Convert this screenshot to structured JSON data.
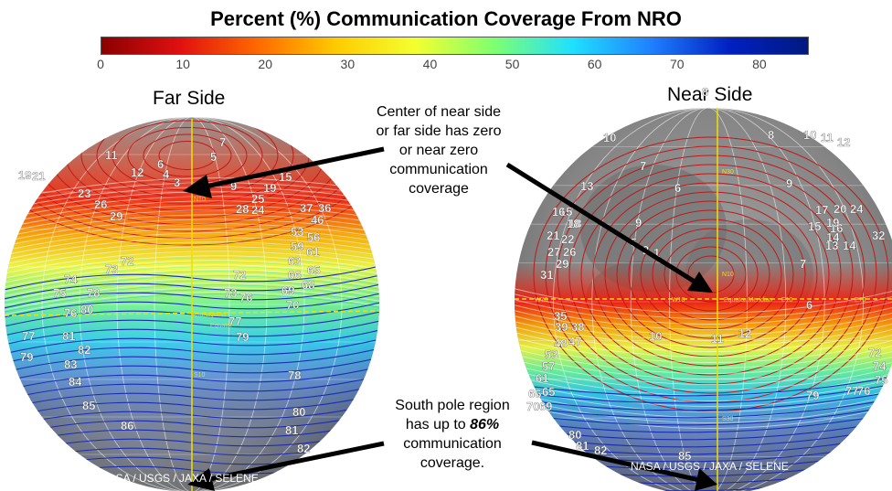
{
  "title": "Percent (%) Communication Coverage From NRO",
  "colorbar": {
    "ticks": [
      "0",
      "10",
      "20",
      "30",
      "40",
      "50",
      "60",
      "70",
      "80"
    ],
    "min": 0,
    "max": 86,
    "colors": [
      "#8b0000",
      "#e01010",
      "#ff6a00",
      "#ffcc00",
      "#f4ff30",
      "#7fff70",
      "#20e0ff",
      "#2080ff",
      "#0020c0",
      "#001a80"
    ]
  },
  "far_side": {
    "label": "Far Side",
    "contour_labels": [
      "3",
      "4",
      "6",
      "7",
      "9",
      "11",
      "12",
      "19",
      "21",
      "23",
      "25",
      "26",
      "28",
      "24",
      "29",
      "37",
      "36",
      "46",
      "53",
      "56",
      "59",
      "61",
      "63",
      "65",
      "66",
      "68",
      "69",
      "70",
      "72",
      "73",
      "74",
      "75",
      "76",
      "77",
      "78",
      "79",
      "80",
      "81",
      "82",
      "83",
      "84",
      "85",
      "86",
      "5",
      "15"
    ],
    "map_labels": [
      "N10",
      "S10",
      "Equator",
      "Anaxagoras"
    ],
    "credit": "NASA / USGS / JAXA / SELENE"
  },
  "near_side": {
    "label": "Near Side",
    "contour_labels": [
      "1",
      "2",
      "5",
      "6",
      "7",
      "8",
      "9",
      "10",
      "11",
      "12",
      "13",
      "14",
      "15",
      "16",
      "17",
      "18",
      "19",
      "20",
      "21",
      "22",
      "24",
      "26",
      "27",
      "29",
      "31",
      "32",
      "35",
      "38",
      "39",
      "47",
      "48",
      "53",
      "57",
      "61",
      "65",
      "66",
      "69",
      "70",
      "72",
      "74",
      "75",
      "76",
      "77",
      "79",
      "80",
      "81",
      "82",
      "85"
    ],
    "map_labels": [
      "N30",
      "N10",
      "Equator/Meridian",
      "W10",
      "W70",
      "E10",
      "E70",
      "S10",
      "S30"
    ],
    "credit": "NASA / USGS / JAXA / SELENE"
  },
  "annotations": {
    "top_note": [
      "Center of near side",
      "or far side has zero",
      "or near zero",
      "communication",
      "coverage"
    ],
    "bottom_note_line1": "South pole region",
    "bottom_note_line2_a": "has up to",
    "bottom_note_line2_b": "86%",
    "bottom_note_line3": "communication",
    "bottom_note_line4": "coverage."
  }
}
